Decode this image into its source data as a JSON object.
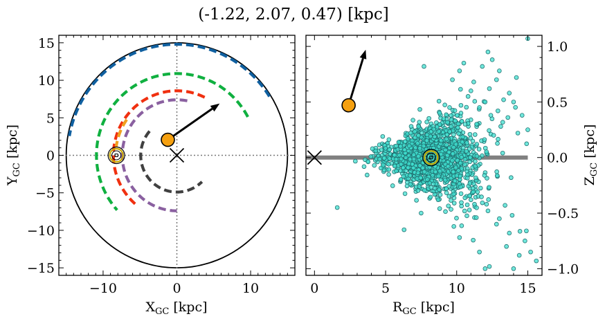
{
  "figure": {
    "title": "(-1.22, 2.07, 0.47) [kpc]"
  },
  "chart_data": [
    {
      "type": "line",
      "panel": "left",
      "xlabel_main": "X",
      "xlabel_sub": "GC",
      "xlabel_unit": " [kpc]",
      "ylabel_main": "Y",
      "ylabel_sub": "GC",
      "ylabel_unit": " [kpc]",
      "xlim": [
        -16,
        16
      ],
      "ylim": [
        -16,
        16
      ],
      "xticks": [
        -10,
        0,
        10
      ],
      "yticks": [
        -15,
        -10,
        -5,
        0,
        5,
        10,
        15
      ],
      "xtick_labels": [
        "−10",
        "0",
        "10"
      ],
      "ytick_labels": [
        "−15",
        "−10",
        "−5",
        "0",
        "5",
        "10",
        "15"
      ],
      "boundary_circle_radius": 15,
      "reference_lines": {
        "x": 0,
        "y": 0,
        "style": "dotted"
      },
      "spiral_arms": [
        {
          "color": "#1060a0",
          "radius": 14.8,
          "theta_start": 32,
          "theta_end": 170
        },
        {
          "color": "#10b040",
          "radius": 10.9,
          "theta_start": 28,
          "theta_end": 222
        },
        {
          "color": "#f03010",
          "radius": 8.6,
          "theta_start": 64,
          "theta_end": 230
        },
        {
          "color": "#f0a020",
          "radius": 8.3,
          "theta_start": 145,
          "theta_end": 172
        },
        {
          "color": "#8a60a0",
          "radius": 7.4,
          "theta_start": 79,
          "theta_end": 270
        },
        {
          "color": "#404040",
          "radius": 4.9,
          "theta_start": 139,
          "theta_end": 314
        }
      ],
      "galactic_center": {
        "x": 0,
        "y": 0,
        "marker": "x"
      },
      "sun": {
        "x": -8.2,
        "y": 0,
        "marker": "sun-symbol",
        "color": "#c8a800"
      },
      "object": {
        "x": -1.22,
        "y": 2.07,
        "color": "#f5a010"
      },
      "velocity_arrow": {
        "from": [
          -1.22,
          2.07
        ],
        "to": [
          5.8,
          6.9
        ]
      }
    },
    {
      "type": "scatter",
      "panel": "right",
      "xlabel_main": "R",
      "xlabel_sub": "GC",
      "xlabel_unit": " [kpc]",
      "ylabel_main": "Z",
      "ylabel_sub": "GC",
      "ylabel_unit": " [kpc]",
      "xlim": [
        -0.6,
        16
      ],
      "ylim": [
        -1.06,
        1.1
      ],
      "xticks": [
        0,
        5,
        10,
        15
      ],
      "yticks": [
        -1.0,
        -0.5,
        0.0,
        0.5,
        1.0
      ],
      "xtick_labels": [
        "0",
        "5",
        "10",
        "15"
      ],
      "ytick_labels": [
        "−1.0",
        "−0.5",
        "0.0",
        "0.5",
        "1.0"
      ],
      "disk_line": {
        "y": 0,
        "x_from": -0.6,
        "x_to": 15,
        "color": "#808080"
      },
      "galactic_center": {
        "x": 0,
        "y": 0,
        "marker": "x"
      },
      "sun": {
        "x": 8.2,
        "y": 0,
        "marker": "sun-symbol",
        "color": "#c8a800"
      },
      "object": {
        "x": 2.4,
        "z": 0.47,
        "color": "#f5a010"
      },
      "velocity_arrow": {
        "from": [
          2.4,
          0.47
        ],
        "to": [
          3.6,
          0.97
        ]
      },
      "points_color": "#40e0d0",
      "points_edge": "#207070",
      "points": [
        [
          15.0,
          1.07
        ],
        [
          12.2,
          0.95
        ],
        [
          10.5,
          0.85
        ],
        [
          12.5,
          0.88
        ],
        [
          10.2,
          0.78
        ],
        [
          11.8,
          0.82
        ],
        [
          13.0,
          0.78
        ],
        [
          9.7,
          0.7
        ],
        [
          12.8,
          0.7
        ],
        [
          7.7,
          0.82
        ],
        [
          14.2,
          0.72
        ],
        [
          11.2,
          0.68
        ],
        [
          11.0,
          0.6
        ],
        [
          12.3,
          0.62
        ],
        [
          13.7,
          0.58
        ],
        [
          10.8,
          0.55
        ],
        [
          12.0,
          0.5
        ],
        [
          13.3,
          0.52
        ],
        [
          14.0,
          0.5
        ],
        [
          9.5,
          0.45
        ],
        [
          11.6,
          0.45
        ],
        [
          12.9,
          0.42
        ],
        [
          10.3,
          0.4
        ],
        [
          8.8,
          0.4
        ],
        [
          7.9,
          0.32
        ],
        [
          12.4,
          0.38
        ],
        [
          13.6,
          0.36
        ],
        [
          14.6,
          0.38
        ],
        [
          9.9,
          0.33
        ],
        [
          11.4,
          0.3
        ],
        [
          13.1,
          0.28
        ],
        [
          15.0,
          0.25
        ],
        [
          14.3,
          0.22
        ],
        [
          6.8,
          0.28
        ],
        [
          12.6,
          0.2
        ],
        [
          1.6,
          -0.45
        ],
        [
          6.3,
          -0.65
        ],
        [
          7.5,
          -0.5
        ],
        [
          9.8,
          -0.62
        ],
        [
          12.2,
          -0.48
        ],
        [
          13.0,
          -0.55
        ],
        [
          12.8,
          -0.6
        ],
        [
          13.7,
          -0.68
        ],
        [
          14.8,
          -0.75
        ],
        [
          13.5,
          -0.8
        ],
        [
          14.4,
          -0.88
        ],
        [
          15.6,
          -0.93
        ],
        [
          12.3,
          -0.98
        ],
        [
          12.0,
          -1.0
        ],
        [
          14.0,
          -1.0
        ],
        [
          11.6,
          -0.85
        ],
        [
          10.2,
          -0.72
        ],
        [
          8.7,
          -0.38
        ],
        [
          11.0,
          -0.38
        ],
        [
          12.1,
          -0.42
        ],
        [
          13.9,
          -0.52
        ],
        [
          15.2,
          -0.85
        ],
        [
          14.9,
          -0.66
        ],
        [
          13.4,
          -0.43
        ]
      ],
      "cloud": {
        "n": 1500,
        "r_center": 8.3,
        "r_spread": 1.7,
        "z_spread": 0.09,
        "seed": 7
      }
    }
  ]
}
